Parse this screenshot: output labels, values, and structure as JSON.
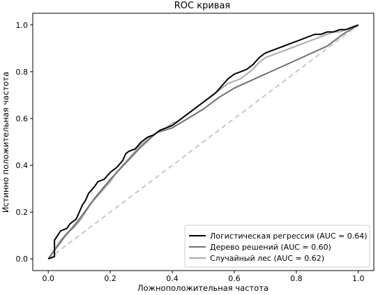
{
  "chart_data": {
    "type": "line",
    "title": "ROC кривая",
    "xlabel": "Ложноположительная частота",
    "ylabel": "Истинно положительная частота",
    "xlim": [
      -0.05,
      1.05
    ],
    "ylim": [
      -0.05,
      1.05
    ],
    "xticks": [
      "0.0",
      "0.2",
      "0.4",
      "0.6",
      "0.8",
      "1.0"
    ],
    "yticks": [
      "0.0",
      "0.2",
      "0.4",
      "0.6",
      "0.8",
      "1.0"
    ],
    "grid": false,
    "legend_position": "lower-right",
    "series": [
      {
        "name": "Логистическая регрессия (AUC = 0.64)",
        "color": "#000000",
        "x": [
          0.0,
          0.02,
          0.02,
          0.04,
          0.06,
          0.07,
          0.09,
          0.1,
          0.11,
          0.12,
          0.13,
          0.15,
          0.16,
          0.18,
          0.2,
          0.22,
          0.24,
          0.25,
          0.26,
          0.28,
          0.3,
          0.32,
          0.34,
          0.36,
          0.38,
          0.4,
          0.42,
          0.44,
          0.46,
          0.48,
          0.5,
          0.52,
          0.54,
          0.56,
          0.58,
          0.6,
          0.62,
          0.64,
          0.66,
          0.68,
          0.7,
          0.72,
          0.74,
          0.76,
          0.78,
          0.8,
          0.82,
          0.84,
          0.86,
          0.88,
          0.9,
          0.92,
          0.94,
          0.96,
          0.98,
          1.0
        ],
        "y": [
          0.0,
          0.01,
          0.08,
          0.12,
          0.13,
          0.15,
          0.17,
          0.2,
          0.23,
          0.25,
          0.28,
          0.31,
          0.33,
          0.34,
          0.37,
          0.39,
          0.42,
          0.45,
          0.46,
          0.47,
          0.5,
          0.52,
          0.53,
          0.55,
          0.56,
          0.57,
          0.59,
          0.61,
          0.63,
          0.65,
          0.67,
          0.69,
          0.71,
          0.74,
          0.77,
          0.79,
          0.8,
          0.81,
          0.83,
          0.86,
          0.88,
          0.89,
          0.9,
          0.91,
          0.92,
          0.93,
          0.94,
          0.95,
          0.96,
          0.96,
          0.97,
          0.97,
          0.98,
          0.98,
          0.99,
          1.0
        ]
      },
      {
        "name": "Дерево решений  (AUC = 0.60)",
        "color": "#707070",
        "x": [
          0.0,
          0.05,
          0.1,
          0.15,
          0.2,
          0.25,
          0.3,
          0.35,
          0.4,
          0.5,
          0.55,
          0.6,
          0.7,
          0.8,
          0.9,
          0.95,
          1.0
        ],
        "y": [
          0.0,
          0.09,
          0.17,
          0.26,
          0.34,
          0.41,
          0.48,
          0.54,
          0.56,
          0.64,
          0.69,
          0.73,
          0.79,
          0.85,
          0.91,
          0.96,
          1.0
        ]
      },
      {
        "name": "Случайный лес (AUC = 0.62)",
        "color": "#aaaaaa",
        "x": [
          0.0,
          0.02,
          0.04,
          0.06,
          0.08,
          0.1,
          0.12,
          0.14,
          0.16,
          0.18,
          0.2,
          0.22,
          0.24,
          0.26,
          0.28,
          0.3,
          0.32,
          0.34,
          0.36,
          0.38,
          0.4,
          0.42,
          0.44,
          0.46,
          0.48,
          0.5,
          0.52,
          0.54,
          0.56,
          0.58,
          0.6,
          0.62,
          0.64,
          0.66,
          0.68,
          0.7,
          0.72,
          0.74,
          0.76,
          0.78,
          0.8,
          0.82,
          0.84,
          0.86,
          0.88,
          0.9,
          0.92,
          0.94,
          0.96,
          0.98,
          1.0
        ],
        "y": [
          0.0,
          0.04,
          0.08,
          0.11,
          0.13,
          0.16,
          0.2,
          0.24,
          0.27,
          0.3,
          0.33,
          0.37,
          0.4,
          0.43,
          0.46,
          0.49,
          0.51,
          0.53,
          0.55,
          0.56,
          0.58,
          0.59,
          0.61,
          0.63,
          0.65,
          0.67,
          0.69,
          0.71,
          0.73,
          0.75,
          0.76,
          0.77,
          0.79,
          0.81,
          0.84,
          0.86,
          0.87,
          0.88,
          0.89,
          0.9,
          0.91,
          0.92,
          0.93,
          0.94,
          0.95,
          0.96,
          0.97,
          0.97,
          0.98,
          0.99,
          1.0
        ]
      },
      {
        "name": "",
        "color": "#c8c8c8",
        "dashed": true,
        "x": [
          0.0,
          1.0
        ],
        "y": [
          0.0,
          1.0
        ]
      }
    ]
  }
}
